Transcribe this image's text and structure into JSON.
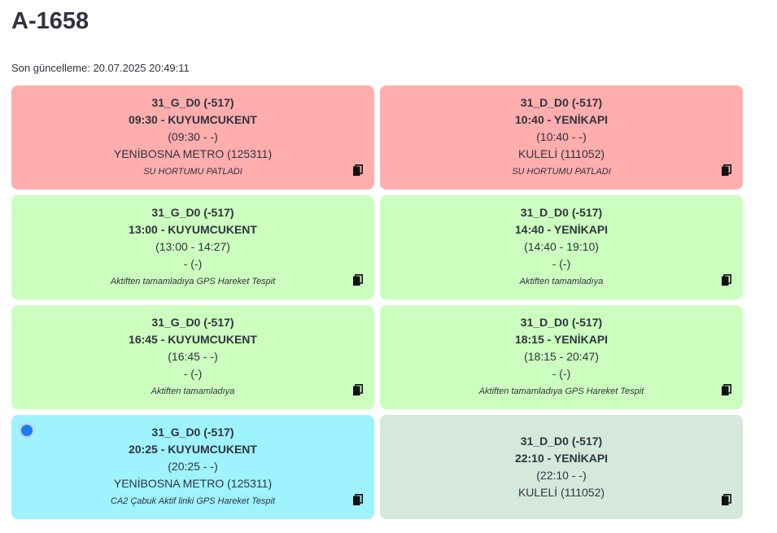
{
  "header": {
    "title": "A-1658",
    "updated": "Son güncelleme: 20.07.2025 20:49:11"
  },
  "cards": [
    {
      "route": "31_G_D0 (-517)",
      "time": "09:30 - KUYUMCUKENT",
      "range": "(09:30 - -)",
      "stop": "YENİBOSNA METRO (125311)",
      "note": "SU HORTUMU PATLADI",
      "color": "#ffadad"
    },
    {
      "route": "31_D_D0 (-517)",
      "time": "10:40 - YENİKAPI",
      "range": "(10:40 - -)",
      "stop": "KULELİ (111052)",
      "note": "SU HORTUMU PATLADI",
      "color": "#ffadad"
    },
    {
      "route": "31_G_D0 (-517)",
      "time": "13:00 - KUYUMCUKENT",
      "range": "(13:00 - 14:27)",
      "stop": "- (-)",
      "note": "Aktiften tamamladıya GPS Hareket Tespit",
      "color": "#ccffbf"
    },
    {
      "route": "31_D_D0 (-517)",
      "time": "14:40 - YENİKAPI",
      "range": "(14:40 - 19:10)",
      "stop": "- (-)",
      "note": "Aktiften tamamladıya",
      "color": "#ccffbf"
    },
    {
      "route": "31_G_D0 (-517)",
      "time": "16:45 - KUYUMCUKENT",
      "range": "(16:45 - -)",
      "stop": "- (-)",
      "note": "Aktiften tamamladıya",
      "color": "#ccffbf"
    },
    {
      "route": "31_D_D0 (-517)",
      "time": "18:15 - YENİKAPI",
      "range": "(18:15 - 20:47)",
      "stop": "- (-)",
      "note": "Aktiften tamamladıya GPS Hareket Tespit",
      "color": "#ccffbf"
    },
    {
      "route": "31_G_D0 (-517)",
      "time": "20:25 - KUYUMCUKENT",
      "range": "(20:25 - -)",
      "stop": "YENİBOSNA METRO (125311)",
      "note": "CA2 Çabuk Aktif linki GPS Hareket Tespit",
      "color": "#9ef3ff",
      "selected": true
    },
    {
      "route": "31_D_D0 (-517)",
      "time": "22:10 - YENİKAPI",
      "range": "(22:10 - -)",
      "stop": "KULELİ (111052)",
      "color": "#d4e8dc"
    }
  ]
}
